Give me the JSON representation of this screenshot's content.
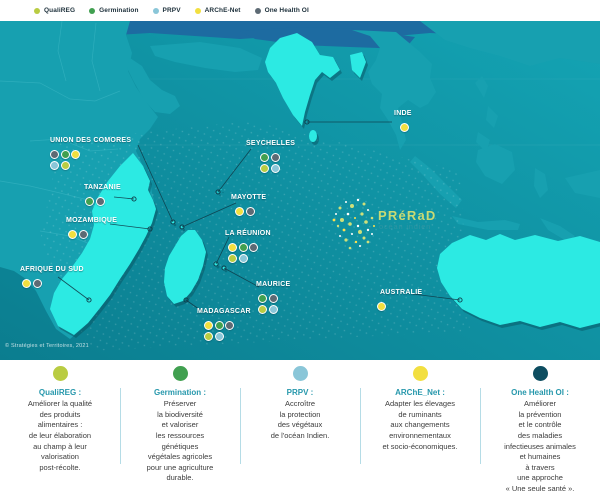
{
  "colors": {
    "qualireg": "#b9cc42",
    "germination": "#41a050",
    "prpv": "#8ac6d8",
    "arche_net": "#f2df40",
    "one_health": "#5d6a74",
    "one_health_desc": "#0d4d60",
    "ocean_dark": "#0b7d8f",
    "ocean_light": "#14a4b4",
    "land_muted": "#17a0b0",
    "land_bright": "#2ceae3",
    "heading_teal": "#2798ac"
  },
  "legend": {
    "items": [
      {
        "label": "QualiREG",
        "color_key": "qualireg"
      },
      {
        "label": "Germination",
        "color_key": "germination"
      },
      {
        "label": "PRPV",
        "color_key": "prpv"
      },
      {
        "label": "ARChE-Net",
        "color_key": "arche_net"
      },
      {
        "label": "One Health OI",
        "color_key": "one_health"
      }
    ]
  },
  "map": {
    "copyright": "© Stratégies et Territoires, 2021",
    "logo": {
      "title": "PRéRaD",
      "subtitle": "océan indien"
    },
    "markers": [
      {
        "name": "UNION DES COMORES",
        "projects": [
          "one_health",
          "germination",
          "arche_net",
          "prpv",
          "qualireg"
        ]
      },
      {
        "name": "TANZANIE",
        "projects": [
          "germination",
          "one_health"
        ]
      },
      {
        "name": "MOZAMBIQUE",
        "projects": [
          "arche_net",
          "one_health"
        ]
      },
      {
        "name": "AFRIQUE DU SUD",
        "projects": [
          "arche_net",
          "one_health"
        ]
      },
      {
        "name": "SEYCHELLES",
        "projects": [
          "germination",
          "one_health",
          "qualireg",
          "prpv"
        ]
      },
      {
        "name": "MAYOTTE",
        "projects": [
          "arche_net",
          "one_health"
        ]
      },
      {
        "name": "LA RÉUNION",
        "projects": [
          "arche_net",
          "germination",
          "one_health",
          "qualireg",
          "prpv"
        ]
      },
      {
        "name": "MAURICE",
        "projects": [
          "germination",
          "one_health",
          "qualireg",
          "prpv"
        ]
      },
      {
        "name": "MADAGASCAR",
        "projects": [
          "arche_net",
          "germination",
          "one_health",
          "qualireg",
          "prpv"
        ]
      },
      {
        "name": "INDE",
        "projects": [
          "arche_net"
        ]
      },
      {
        "name": "AUSTRALIE",
        "projects": [
          "arche_net"
        ]
      }
    ]
  },
  "descriptions": [
    {
      "title": "QualiREG :",
      "color_key": "qualireg",
      "body": "Améliorer la qualité\ndes produits\nalimentaires :\nde leur élaboration\nau champ à leur\nvalorisation\npost-récolte."
    },
    {
      "title": "Germination :",
      "color_key": "germination",
      "body": "Préserver\nla biodiversité\net valoriser\nles ressources\ngénétiques\nvégétales agricoles\npour une agriculture\ndurable."
    },
    {
      "title": "PRPV :",
      "color_key": "prpv",
      "body": "Accroître\nla protection\ndes végétaux\nde l'océan Indien."
    },
    {
      "title": "ARChE_Net :",
      "color_key": "arche_net",
      "body": "Adapter les élevages\nde ruminants\naux changements\nenvironnementaux\net socio-économiques."
    },
    {
      "title": "One Health OI :",
      "color_key": "one_health_desc",
      "body": "Améliorer\nla prévention\net le contrôle\ndes maladies\ninfectieuses animales\net humaines\nà travers\nune approche\n« Une seule santé »."
    }
  ]
}
